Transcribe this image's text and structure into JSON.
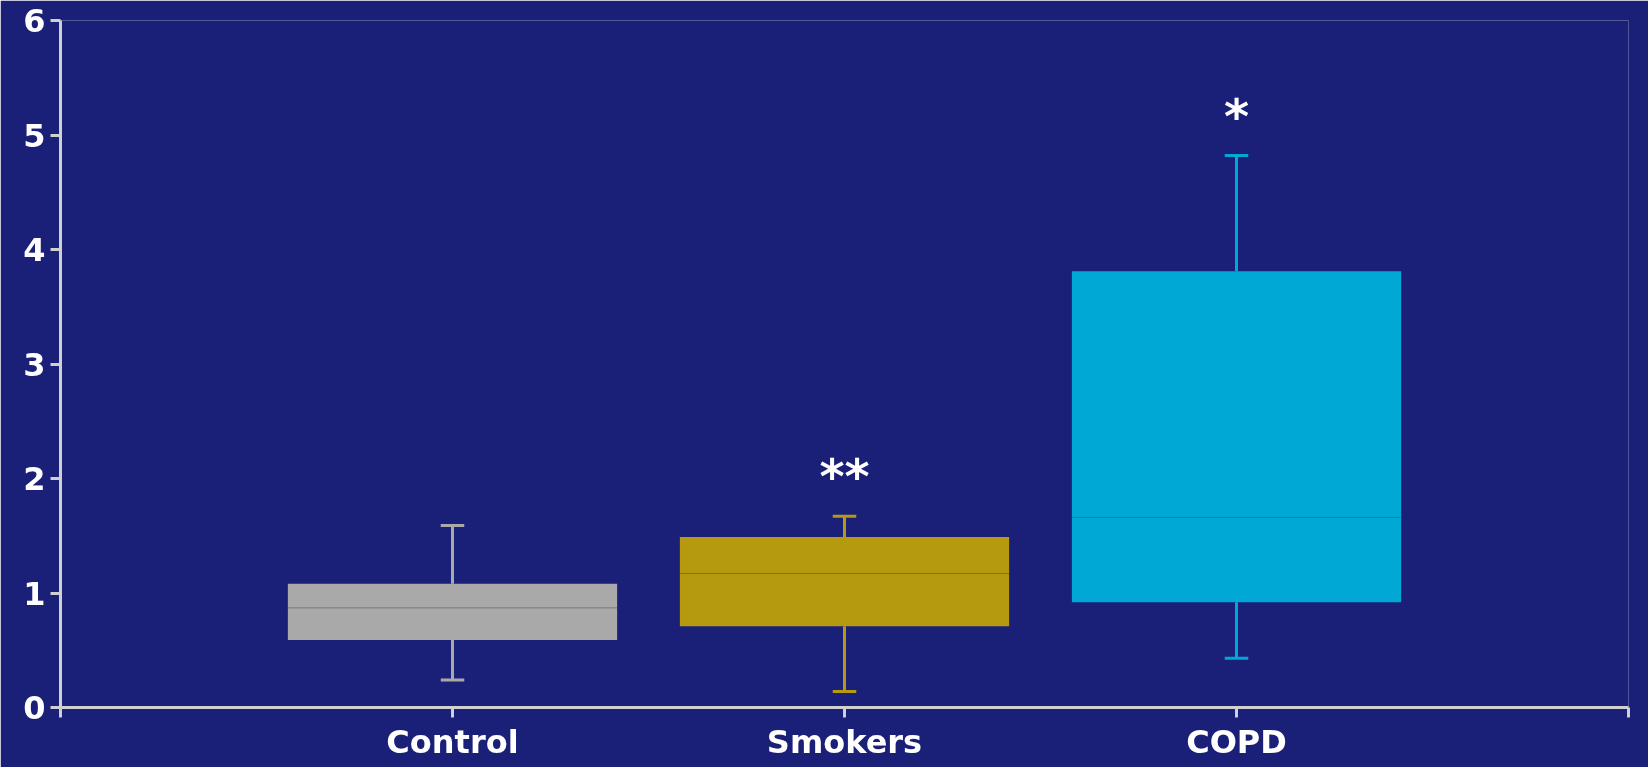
{
  "chart_data": {
    "type": "box",
    "categories": [
      "Control",
      "Smokers",
      "COPD"
    ],
    "colors": [
      "#a9a9a9",
      "#b5990f",
      "#00a8d6"
    ],
    "boxes": [
      {
        "low": 0.24,
        "q1": 0.59,
        "median": 0.87,
        "q3": 1.08,
        "high": 1.59
      },
      {
        "low": 0.14,
        "q1": 0.71,
        "median": 1.17,
        "q3": 1.49,
        "high": 1.67
      },
      {
        "low": 0.43,
        "q1": 0.92,
        "median": 1.66,
        "q3": 3.81,
        "high": 4.82
      }
    ],
    "ylim": [
      0,
      6
    ],
    "yticks": [
      0,
      1,
      2,
      3,
      4,
      5,
      6
    ],
    "annotations": [
      "**",
      "*"
    ],
    "grid": false
  }
}
